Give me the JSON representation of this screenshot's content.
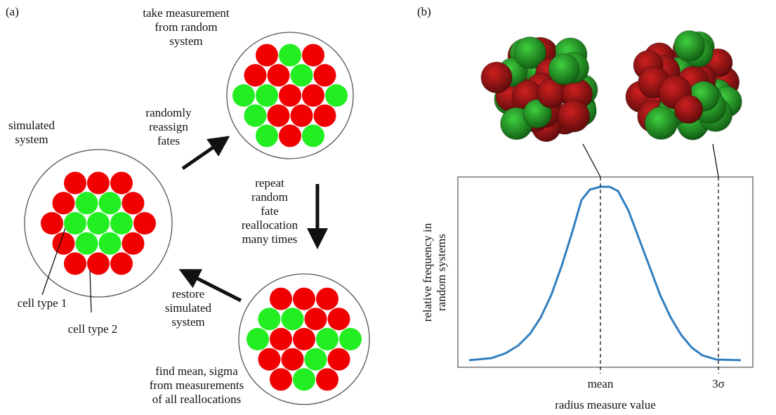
{
  "panel_a": {
    "label": "(a)",
    "take_measurement": [
      "take measurement",
      "from random",
      "system"
    ],
    "simulated_system": [
      "simulated",
      "system"
    ],
    "randomly_reassign": [
      "randomly",
      "reassign",
      "fates"
    ],
    "repeat": [
      "repeat",
      "random",
      "fate",
      "reallocation",
      "many times"
    ],
    "restore": [
      "restore",
      "simulated",
      "system"
    ],
    "cell_type_1": "cell type 1",
    "cell_type_2": "cell type 2",
    "find_mean": [
      "find mean, sigma",
      "from measurements",
      "of all reallocations"
    ]
  },
  "panel_b": {
    "label": "(b)",
    "y_label": [
      "relative frequency in",
      "random systems"
    ],
    "x_label": "radius measure value",
    "mean_label": "mean",
    "sigma_label": "3σ"
  }
}
